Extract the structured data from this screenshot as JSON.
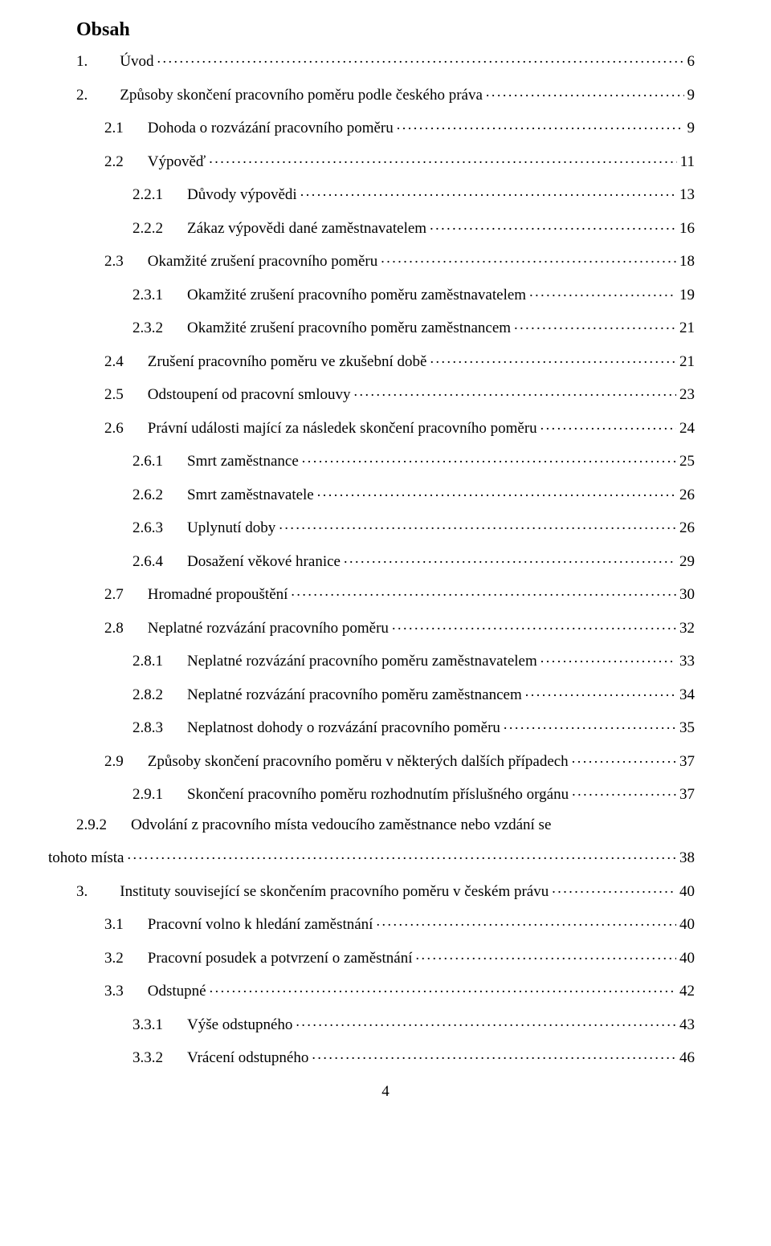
{
  "heading": "Obsah",
  "page_number": "4",
  "entries": [
    {
      "level": 0,
      "num": "1.",
      "text": "Úvod",
      "page": "6"
    },
    {
      "level": 0,
      "num": "2.",
      "text": "Způsoby skončení pracovního poměru podle českého práva",
      "page": "9"
    },
    {
      "level": 1,
      "num": "2.1",
      "text": "Dohoda o rozvázání pracovního poměru",
      "page": "9"
    },
    {
      "level": 1,
      "num": "2.2",
      "text": "Výpověď",
      "page": "11"
    },
    {
      "level": 2,
      "num": "2.2.1",
      "text": "Důvody výpovědi",
      "page": "13"
    },
    {
      "level": 2,
      "num": "2.2.2",
      "text": "Zákaz výpovědi dané zaměstnavatelem",
      "page": "16"
    },
    {
      "level": 1,
      "num": "2.3",
      "text": "Okamžité zrušení pracovního poměru",
      "page": "18"
    },
    {
      "level": 2,
      "num": "2.3.1",
      "text": "Okamžité zrušení pracovního poměru zaměstnavatelem",
      "page": "19"
    },
    {
      "level": 2,
      "num": "2.3.2",
      "text": "Okamžité zrušení pracovního poměru zaměstnancem",
      "page": "21"
    },
    {
      "level": 1,
      "num": "2.4",
      "text": "Zrušení pracovního poměru ve zkušební době",
      "page": "21"
    },
    {
      "level": 1,
      "num": "2.5",
      "text": "Odstoupení od pracovní smlouvy",
      "page": "23"
    },
    {
      "level": 1,
      "num": "2.6",
      "text": "Právní události mající za následek skončení pracovního poměru",
      "page": "24"
    },
    {
      "level": 2,
      "num": "2.6.1",
      "text": "Smrt zaměstnance",
      "page": "25"
    },
    {
      "level": 2,
      "num": "2.6.2",
      "text": "Smrt zaměstnavatele",
      "page": "26"
    },
    {
      "level": 2,
      "num": "2.6.3",
      "text": "Uplynutí doby",
      "page": "26"
    },
    {
      "level": 2,
      "num": "2.6.4",
      "text": "Dosažení věkové hranice",
      "page": "29"
    },
    {
      "level": 1,
      "num": "2.7",
      "text": "Hromadné propouštění",
      "page": "30"
    },
    {
      "level": 1,
      "num": "2.8",
      "text": "Neplatné rozvázání pracovního poměru",
      "page": "32"
    },
    {
      "level": 2,
      "num": "2.8.1",
      "text": "Neplatné rozvázání pracovního poměru zaměstnavatelem",
      "page": "33"
    },
    {
      "level": 2,
      "num": "2.8.2",
      "text": "Neplatné rozvázání pracovního poměru zaměstnancem",
      "page": "34"
    },
    {
      "level": 2,
      "num": "2.8.3",
      "text": "Neplatnost dohody o rozvázání pracovního poměru",
      "page": "35"
    },
    {
      "level": 1,
      "num": "2.9",
      "text": "Způsoby skončení pracovního poměru v některých dalších případech",
      "page": "37"
    },
    {
      "level": 2,
      "num": "2.9.1",
      "text": "Skončení pracovního poměru rozhodnutím příslušného orgánu",
      "page": "37"
    },
    {
      "level": 2,
      "num": "2.9.2",
      "wrap": true,
      "text_a": "Odvolání  z pracovního  místa  vedoucího  zaměstnance  nebo  vzdání  se",
      "text_b": "tohoto místa",
      "page": "38"
    },
    {
      "level": 0,
      "num": "3.",
      "text": "Instituty související se skončením pracovního poměru v českém právu",
      "page": "40"
    },
    {
      "level": 1,
      "num": "3.1",
      "text": "Pracovní volno k hledání zaměstnání",
      "page": "40"
    },
    {
      "level": 1,
      "num": "3.2",
      "text": "Pracovní posudek a potvrzení o zaměstnání",
      "page": "40"
    },
    {
      "level": 1,
      "num": "3.3",
      "text": "Odstupné",
      "page": "42"
    },
    {
      "level": 2,
      "num": "3.3.1",
      "text": "Výše odstupného",
      "page": "43"
    },
    {
      "level": 2,
      "num": "3.3.2",
      "text": "Vrácení odstupného",
      "page": "46"
    }
  ]
}
